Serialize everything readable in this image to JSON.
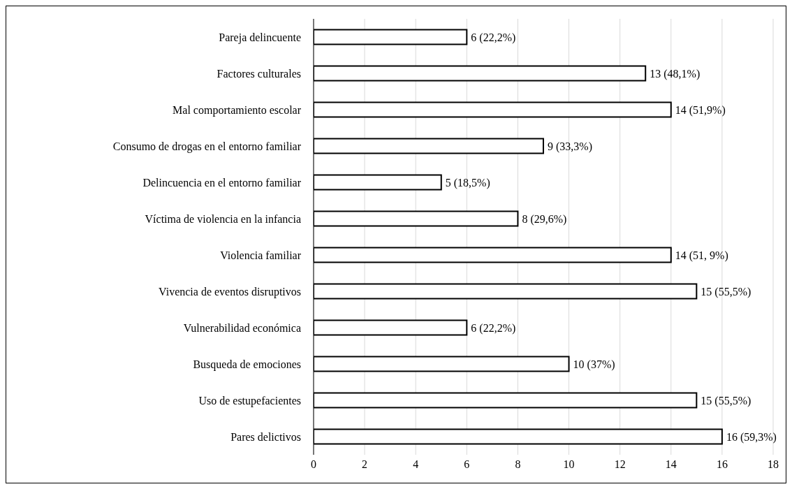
{
  "chart_data": {
    "type": "bar",
    "orientation": "horizontal",
    "categories": [
      "Pareja delincuente",
      "Factores culturales",
      "Mal comportamiento escolar",
      "Consumo de drogas en el entorno familiar",
      "Delincuencia en el entorno familiar",
      "Víctima de violencia en la infancia",
      "Violencia familiar",
      "Vivencia de eventos disruptivos",
      "Vulnerabilidad económica",
      "Busqueda de emociones",
      "Uso de estupefacientes",
      "Pares delictivos"
    ],
    "values": [
      6,
      13,
      14,
      9,
      5,
      8,
      14,
      15,
      6,
      10,
      15,
      16
    ],
    "value_labels": [
      "6 (22,2%)",
      "13 (48,1%)",
      "14 (51,9%)",
      "9 (33,3%)",
      "5 (18,5%)",
      "8 (29,6%)",
      "14 (51, 9%)",
      "15 (55,5%)",
      "6 (22,2%)",
      "10 (37%)",
      "15 (55,5%)",
      "16 (59,3%)"
    ],
    "color": "#ffffff",
    "xlim": [
      0,
      18
    ],
    "xticks": [
      0,
      2,
      4,
      6,
      8,
      10,
      12,
      14,
      16,
      18
    ],
    "grid": "x"
  }
}
